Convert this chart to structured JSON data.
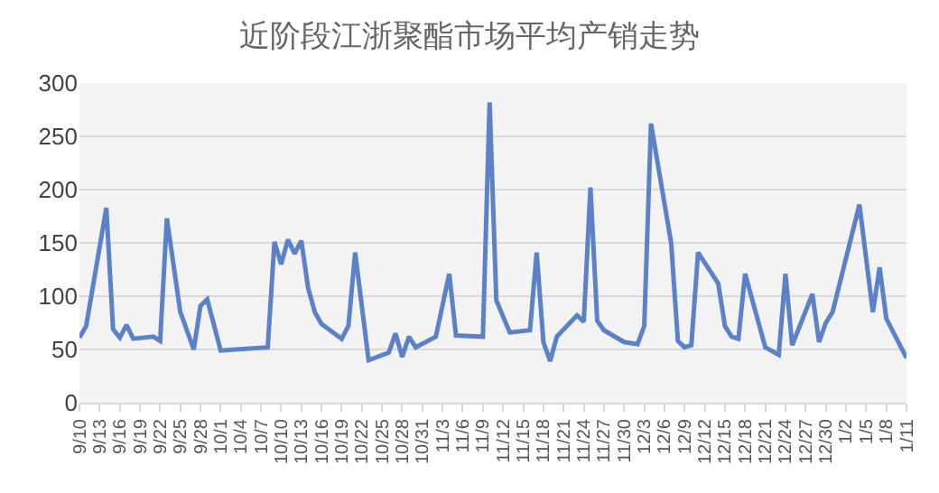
{
  "chart_data": {
    "type": "line",
    "title": "近阶段江浙聚酯市场平均产销走势",
    "categories": [
      "9/10",
      null,
      null,
      "9/13",
      null,
      null,
      "9/16",
      null,
      null,
      "9/19",
      null,
      null,
      "9/22",
      null,
      null,
      "9/25",
      null,
      null,
      "9/28",
      null,
      null,
      "10/1",
      null,
      null,
      "10/4",
      null,
      null,
      "10/7",
      null,
      null,
      "10/10",
      null,
      null,
      "10/13",
      null,
      null,
      "10/16",
      null,
      null,
      "10/19",
      null,
      null,
      "10/22",
      null,
      null,
      "10/25",
      null,
      null,
      "10/28",
      null,
      null,
      "10/31",
      null,
      null,
      "11/3",
      null,
      null,
      "11/6",
      null,
      null,
      "11/9",
      null,
      null,
      "11/12",
      null,
      null,
      "11/15",
      null,
      null,
      "11/18",
      null,
      null,
      "11/21",
      null,
      null,
      "11/24",
      null,
      null,
      "11/27",
      null,
      null,
      "11/30",
      null,
      null,
      "12/3",
      null,
      null,
      "12/6",
      null,
      null,
      "12/9",
      null,
      null,
      "12/12",
      null,
      null,
      "12/15",
      null,
      null,
      "12/18",
      null,
      null,
      "12/21",
      null,
      null,
      "12/24",
      null,
      null,
      "12/27",
      null,
      null,
      "12/30",
      null,
      null,
      "1/2",
      null,
      null,
      "1/5",
      null,
      null,
      "1/8",
      null,
      null,
      "1/11"
    ],
    "series": [
      {
        "color": "#5b82c8",
        "values": [
          61,
          72,
          null,
          null,
          183,
          69,
          61,
          73,
          60,
          null,
          null,
          62,
          58,
          173,
          null,
          85,
          null,
          50,
          91,
          97,
          null,
          49,
          null,
          null,
          null,
          null,
          null,
          null,
          52,
          151,
          130,
          153,
          140,
          152,
          108,
          85,
          74,
          null,
          null,
          60,
          72,
          141,
          null,
          40,
          null,
          null,
          47,
          65,
          43,
          62,
          52,
          null,
          null,
          62,
          null,
          121,
          63,
          null,
          null,
          null,
          62,
          282,
          96,
          null,
          66,
          null,
          null,
          68,
          141,
          57,
          39,
          62,
          null,
          null,
          82,
          76,
          202,
          77,
          68,
          null,
          null,
          57,
          null,
          55,
          72,
          262,
          null,
          null,
          150,
          58,
          52,
          54,
          141,
          null,
          null,
          112,
          72,
          62,
          60,
          121,
          null,
          null,
          52,
          null,
          45,
          121,
          54,
          null,
          null,
          102,
          57,
          75,
          85,
          null,
          null,
          null,
          186,
          null,
          85,
          127,
          79,
          null,
          null,
          42
        ]
      }
    ],
    "ylim": [
      0,
      300
    ],
    "yticks": [
      0,
      50,
      100,
      150,
      200,
      250,
      300
    ],
    "grid": "y",
    "marker": "none",
    "line_style": "solid"
  }
}
